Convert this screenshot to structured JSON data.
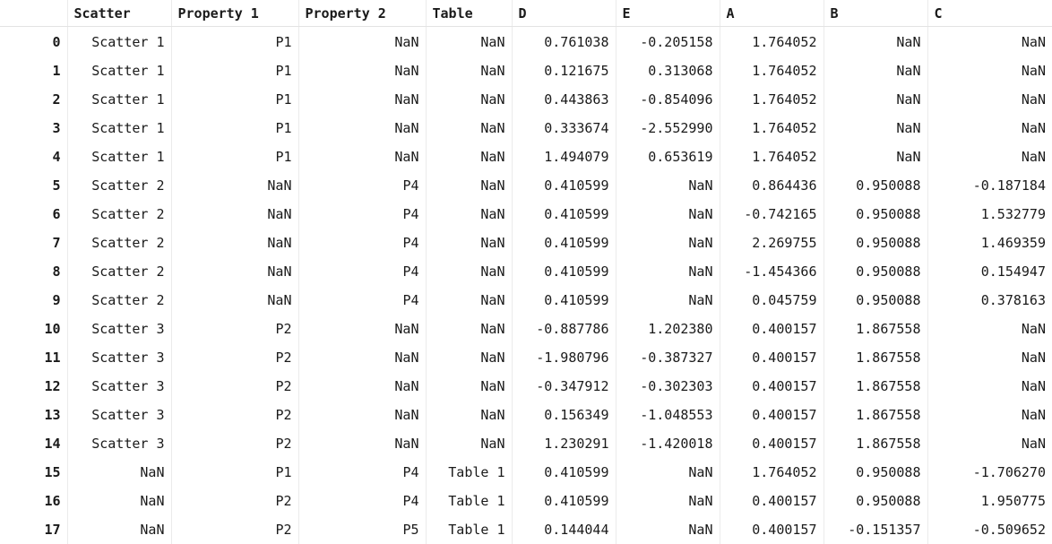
{
  "table": {
    "index_header": "",
    "columns": [
      "Scatter",
      "Property 1",
      "Property 2",
      "Table",
      "D",
      "E",
      "A",
      "B",
      "C"
    ],
    "index": [
      "0",
      "1",
      "2",
      "3",
      "4",
      "5",
      "6",
      "7",
      "8",
      "9",
      "10",
      "11",
      "12",
      "13",
      "14",
      "15",
      "16",
      "17"
    ],
    "rows": [
      [
        "Scatter 1",
        "P1",
        "NaN",
        "NaN",
        "0.761038",
        "-0.205158",
        "1.764052",
        "NaN",
        "NaN"
      ],
      [
        "Scatter 1",
        "P1",
        "NaN",
        "NaN",
        "0.121675",
        "0.313068",
        "1.764052",
        "NaN",
        "NaN"
      ],
      [
        "Scatter 1",
        "P1",
        "NaN",
        "NaN",
        "0.443863",
        "-0.854096",
        "1.764052",
        "NaN",
        "NaN"
      ],
      [
        "Scatter 1",
        "P1",
        "NaN",
        "NaN",
        "0.333674",
        "-2.552990",
        "1.764052",
        "NaN",
        "NaN"
      ],
      [
        "Scatter 1",
        "P1",
        "NaN",
        "NaN",
        "1.494079",
        "0.653619",
        "1.764052",
        "NaN",
        "NaN"
      ],
      [
        "Scatter 2",
        "NaN",
        "P4",
        "NaN",
        "0.410599",
        "NaN",
        "0.864436",
        "0.950088",
        "-0.187184"
      ],
      [
        "Scatter 2",
        "NaN",
        "P4",
        "NaN",
        "0.410599",
        "NaN",
        "-0.742165",
        "0.950088",
        "1.532779"
      ],
      [
        "Scatter 2",
        "NaN",
        "P4",
        "NaN",
        "0.410599",
        "NaN",
        "2.269755",
        "0.950088",
        "1.469359"
      ],
      [
        "Scatter 2",
        "NaN",
        "P4",
        "NaN",
        "0.410599",
        "NaN",
        "-1.454366",
        "0.950088",
        "0.154947"
      ],
      [
        "Scatter 2",
        "NaN",
        "P4",
        "NaN",
        "0.410599",
        "NaN",
        "0.045759",
        "0.950088",
        "0.378163"
      ],
      [
        "Scatter 3",
        "P2",
        "NaN",
        "NaN",
        "-0.887786",
        "1.202380",
        "0.400157",
        "1.867558",
        "NaN"
      ],
      [
        "Scatter 3",
        "P2",
        "NaN",
        "NaN",
        "-1.980796",
        "-0.387327",
        "0.400157",
        "1.867558",
        "NaN"
      ],
      [
        "Scatter 3",
        "P2",
        "NaN",
        "NaN",
        "-0.347912",
        "-0.302303",
        "0.400157",
        "1.867558",
        "NaN"
      ],
      [
        "Scatter 3",
        "P2",
        "NaN",
        "NaN",
        "0.156349",
        "-1.048553",
        "0.400157",
        "1.867558",
        "NaN"
      ],
      [
        "Scatter 3",
        "P2",
        "NaN",
        "NaN",
        "1.230291",
        "-1.420018",
        "0.400157",
        "1.867558",
        "NaN"
      ],
      [
        "NaN",
        "P1",
        "P4",
        "Table 1",
        "0.410599",
        "NaN",
        "1.764052",
        "0.950088",
        "-1.706270"
      ],
      [
        "NaN",
        "P2",
        "P4",
        "Table 1",
        "0.410599",
        "NaN",
        "0.400157",
        "0.950088",
        "1.950775"
      ],
      [
        "NaN",
        "P2",
        "P5",
        "Table 1",
        "0.144044",
        "NaN",
        "0.400157",
        "-0.151357",
        "-0.509652"
      ]
    ]
  }
}
